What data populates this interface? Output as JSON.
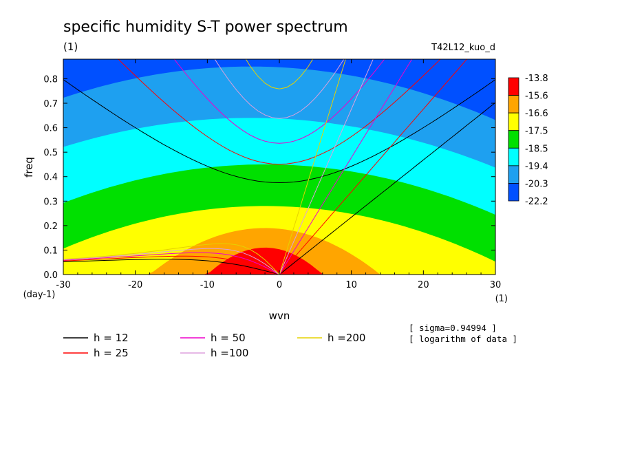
{
  "chart_data": {
    "type": "heatmap",
    "title": "specific humidity S-T power spectrum",
    "subtitle": "(1)",
    "run_label": "T42L12_kuo_d",
    "xlabel": "wvn",
    "ylabel": "freq",
    "x_unit": "(1)",
    "y_unit": "(day-1)",
    "xlim": [
      -30,
      30
    ],
    "ylim": [
      0,
      0.88
    ],
    "x_ticks": [
      "-30",
      "-20",
      "-10",
      "0",
      "10",
      "20",
      "30"
    ],
    "y_ticks": [
      "0.0",
      "0.1",
      "0.2",
      "0.3",
      "0.4",
      "0.5",
      "0.6",
      "0.7",
      "0.8"
    ],
    "colorbar": {
      "labels": [
        "-13.8",
        "-15.6",
        "-16.6",
        "-17.5",
        "-18.5",
        "-19.4",
        "-20.3",
        "-22.2"
      ],
      "colors": [
        "#ff0000",
        "#ffa500",
        "#ffff00",
        "#00e000",
        "#00ffff",
        "#1ea0f0",
        "#0050ff"
      ]
    },
    "contour_bands": [
      {
        "level": -15.6,
        "color": "#ff0000",
        "center_x": -2,
        "half_width": 8,
        "freq_center": 0.11,
        "freq_edge": 0.0
      },
      {
        "level": -16.6,
        "color": "#ffa500",
        "center_x": -2,
        "half_width": 16,
        "freq_center": 0.19,
        "freq_edge": 0.0
      },
      {
        "level": -17.5,
        "color": "#ffff00",
        "center_x": -2,
        "half_width": 26,
        "freq_center": 0.28,
        "freq_edge": 0.13
      },
      {
        "level": -18.5,
        "color": "#00e000",
        "center_x": -2,
        "half_width": 38,
        "freq_center": 0.45,
        "freq_edge": 0.16
      },
      {
        "level": -19.4,
        "color": "#00ffff",
        "center_x": -4,
        "half_width": 42,
        "freq_center": 0.64,
        "freq_edge": 0.33
      },
      {
        "level": -20.3,
        "color": "#1ea0f0",
        "center_x": -4,
        "half_width": 46,
        "freq_center": 0.85,
        "freq_edge": 0.45
      }
    ],
    "background_color": "#0050ff",
    "dispersion_curves": [
      {
        "name": "h = 12",
        "h": 12,
        "color": "#000000"
      },
      {
        "name": "h = 25",
        "h": 25,
        "color": "#ff0000"
      },
      {
        "name": "h = 50",
        "h": 50,
        "color": "#ee00cc"
      },
      {
        "name": "h =100",
        "h": 100,
        "color": "#dda0dd"
      },
      {
        "name": "h =200",
        "h": 200,
        "color": "#e6d200"
      }
    ],
    "annotations": [
      "[ sigma=0.94994 ]",
      "[ logarithm of data ]"
    ]
  }
}
